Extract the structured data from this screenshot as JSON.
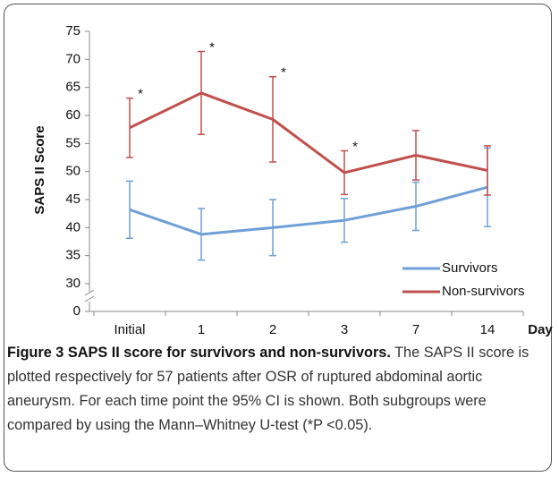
{
  "chart_data": {
    "type": "line",
    "ylabel": "SAPS II Score",
    "xlabel": "Day",
    "categories": [
      "Initial",
      "1",
      "2",
      "3",
      "7",
      "14"
    ],
    "series": [
      {
        "name": "Survivors",
        "color": "#6f9fd8",
        "values": [
          43.2,
          38.8,
          40.0,
          41.3,
          43.8,
          47.2
        ],
        "errors": [
          5.1,
          4.6,
          5.0,
          3.9,
          4.3,
          7.0
        ]
      },
      {
        "name": "Non-survivors",
        "color": "#c0504d",
        "values": [
          57.8,
          64.0,
          59.3,
          49.8,
          52.9,
          50.2
        ],
        "errors": [
          5.3,
          7.4,
          7.6,
          3.9,
          4.4,
          4.4
        ]
      }
    ],
    "significance_labels": [
      "*",
      "*",
      "*",
      "*",
      null,
      null
    ],
    "ylim": [
      30,
      75
    ],
    "yticks": [
      0,
      30,
      35,
      40,
      45,
      50,
      55,
      60,
      65,
      70,
      75
    ],
    "y_axis_break": true,
    "legend": "lower-right",
    "grid": false
  },
  "caption": {
    "title": "Figure 3 SAPS II score for survivors and non-survivors.",
    "text": "The SAPS II score is plotted respectively for 57 patients after OSR of ruptured abdominal aortic aneurysm. For each time point the 95% CI is shown. Both subgroups were compared by using the Mann–Whitney U-test (*P <0.05)."
  }
}
